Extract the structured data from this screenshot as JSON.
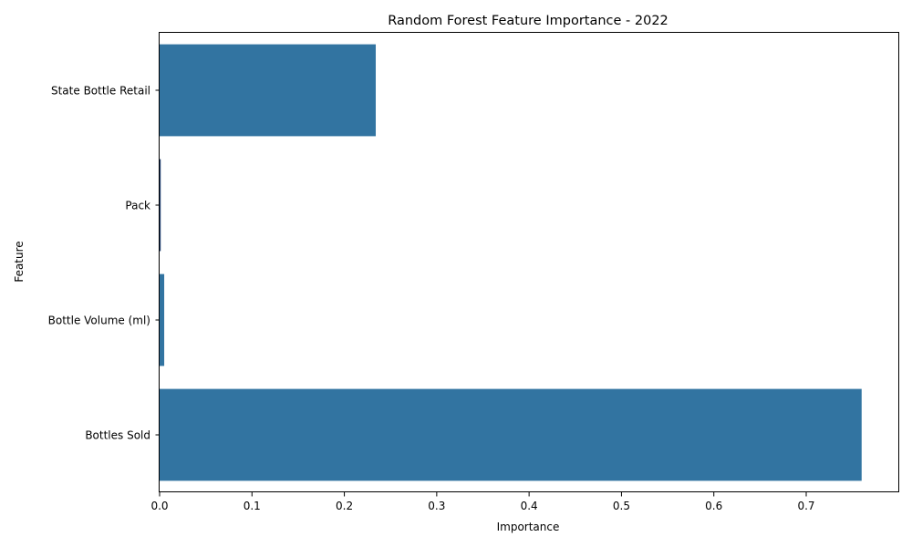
{
  "chart_data": {
    "type": "bar",
    "orientation": "horizontal",
    "title": "Random Forest Feature Importance - 2022",
    "xlabel": "Importance",
    "ylabel": "Feature",
    "categories": [
      "State Bottle Retail",
      "Pack",
      "Bottle Volume (ml)",
      "Bottles Sold"
    ],
    "values": [
      0.234,
      0.001,
      0.005,
      0.76
    ],
    "xlim": [
      0,
      0.8
    ],
    "xticks": [
      "0.0",
      "0.1",
      "0.2",
      "0.3",
      "0.4",
      "0.5",
      "0.6",
      "0.7"
    ],
    "grid": false,
    "colors": {
      "bar": "#3274a1",
      "thin_bar": "#1f3d6b"
    }
  }
}
